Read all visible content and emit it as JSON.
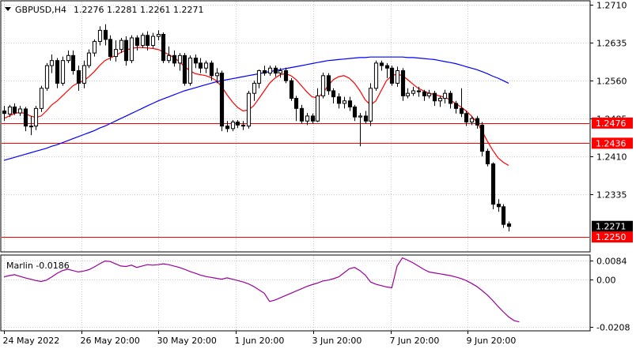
{
  "header": {
    "symbol_timeframe": "GBPUSD,H4",
    "ohlc": "1.2276 1.2281 1.2261 1.2271",
    "menu_arrow": "triangle-down-icon"
  },
  "colors": {
    "background": "#ffffff",
    "grid": "#c8c8c8",
    "candle": "#000000",
    "ma_fast": "#ff0000",
    "ma_slow": "#0000ff",
    "hline": "#ff0000",
    "marlin": "#990099",
    "price_tag_red": "#ff0000",
    "price_tag_black": "#000000"
  },
  "chart_data": [
    {
      "type": "candlestick",
      "title": "GBPUSD,H4",
      "x_tick_labels": [
        "24 May 2022",
        "26 May 20:00",
        "30 May 20:00",
        "1 Jun 20:00",
        "3 Jun 20:00",
        "7 Jun 20:00",
        "9 Jun 20:00"
      ],
      "y_tick_labels": [
        "1.2710",
        "1.2635",
        "1.2560",
        "1.2485",
        "1.2410",
        "1.2335"
      ],
      "ylim": [
        1.2222,
        1.2717
      ],
      "grid": true,
      "price_tags": [
        {
          "value": 1.2476,
          "label": "1.2476",
          "style": "red"
        },
        {
          "value": 1.2436,
          "label": "1.2436",
          "style": "red"
        },
        {
          "value": 1.2271,
          "label": "1.2271",
          "style": "black"
        },
        {
          "value": 1.225,
          "label": "1.2250",
          "style": "red"
        }
      ],
      "hlines": [
        1.2476,
        1.2436,
        1.225
      ],
      "candles": [
        [
          1.25,
          1.2495,
          1.251,
          1.248
        ],
        [
          1.2494,
          1.2508,
          1.2512,
          1.2488
        ],
        [
          1.2508,
          1.2496,
          1.2515,
          1.2492
        ],
        [
          1.2496,
          1.2504,
          1.251,
          1.249
        ],
        [
          1.2504,
          1.247,
          1.2508,
          1.246
        ],
        [
          1.247,
          1.247,
          1.249,
          1.2452
        ],
        [
          1.247,
          1.2505,
          1.251,
          1.2462
        ],
        [
          1.2505,
          1.2545,
          1.255,
          1.2498
        ],
        [
          1.2545,
          1.259,
          1.2595,
          1.254
        ],
        [
          1.259,
          1.26,
          1.2612,
          1.2575
        ],
        [
          1.26,
          1.2555,
          1.2605,
          1.2545
        ],
        [
          1.2555,
          1.26,
          1.2608,
          1.255
        ],
        [
          1.26,
          1.261,
          1.262,
          1.2595
        ],
        [
          1.261,
          1.258,
          1.262,
          1.2572
        ],
        [
          1.258,
          1.2555,
          1.259,
          1.254
        ],
        [
          1.2555,
          1.259,
          1.26,
          1.2545
        ],
        [
          1.259,
          1.2615,
          1.2622,
          1.2585
        ],
        [
          1.2615,
          1.2638,
          1.2642,
          1.2608
        ],
        [
          1.2638,
          1.266,
          1.2668,
          1.263
        ],
        [
          1.266,
          1.2642,
          1.2672,
          1.263
        ],
        [
          1.2642,
          1.2608,
          1.265,
          1.26
        ],
        [
          1.2608,
          1.2622,
          1.264,
          1.2598
        ],
        [
          1.2622,
          1.264,
          1.2645,
          1.2615
        ],
        [
          1.264,
          1.26,
          1.2648,
          1.259
        ],
        [
          1.26,
          1.2645,
          1.265,
          1.2595
        ],
        [
          1.2645,
          1.263,
          1.265,
          1.262
        ],
        [
          1.263,
          1.265,
          1.2655,
          1.2625
        ],
        [
          1.265,
          1.263,
          1.2658,
          1.262
        ],
        [
          1.263,
          1.2648,
          1.2655,
          1.2625
        ],
        [
          1.2648,
          1.2652,
          1.266,
          1.264
        ],
        [
          1.2652,
          1.26,
          1.2656,
          1.2595
        ],
        [
          1.26,
          1.261,
          1.2628,
          1.2595
        ],
        [
          1.261,
          1.2595,
          1.262,
          1.2588
        ],
        [
          1.2595,
          1.261,
          1.2615,
          1.258
        ],
        [
          1.261,
          1.2555,
          1.2615,
          1.255
        ],
        [
          1.2555,
          1.2605,
          1.261,
          1.255
        ],
        [
          1.2605,
          1.2595,
          1.2612,
          1.2585
        ],
        [
          1.2595,
          1.2585,
          1.2605,
          1.2575
        ],
        [
          1.2585,
          1.2595,
          1.26,
          1.2575
        ],
        [
          1.2595,
          1.257,
          1.26,
          1.256
        ],
        [
          1.257,
          1.2575,
          1.2585,
          1.2555
        ],
        [
          1.2575,
          1.247,
          1.258,
          1.246
        ],
        [
          1.247,
          1.2465,
          1.248,
          1.2458
        ],
        [
          1.2465,
          1.2478,
          1.2482,
          1.246
        ],
        [
          1.2478,
          1.2472,
          1.2482,
          1.2466
        ],
        [
          1.2472,
          1.247,
          1.248,
          1.2462
        ],
        [
          1.247,
          1.2535,
          1.254,
          1.2465
        ],
        [
          1.2535,
          1.2555,
          1.256,
          1.252
        ],
        [
          1.2555,
          1.258,
          1.2582,
          1.2545
        ],
        [
          1.258,
          1.2575,
          1.259,
          1.257
        ],
        [
          1.2575,
          1.2585,
          1.259,
          1.257
        ],
        [
          1.2585,
          1.2575,
          1.259,
          1.2568
        ],
        [
          1.2575,
          1.258,
          1.2585,
          1.2566
        ],
        [
          1.258,
          1.256,
          1.2586,
          1.2555
        ],
        [
          1.256,
          1.2525,
          1.2565,
          1.252
        ],
        [
          1.2525,
          1.2505,
          1.253,
          1.248
        ],
        [
          1.2505,
          1.248,
          1.2512,
          1.2475
        ],
        [
          1.248,
          1.249,
          1.2496,
          1.2472
        ],
        [
          1.249,
          1.248,
          1.2495,
          1.2475
        ],
        [
          1.248,
          1.253,
          1.2545,
          1.2478
        ],
        [
          1.253,
          1.257,
          1.2576,
          1.2525
        ],
        [
          1.257,
          1.254,
          1.2575,
          1.2532
        ],
        [
          1.254,
          1.2528,
          1.2545,
          1.2515
        ],
        [
          1.2528,
          1.2515,
          1.2535,
          1.2505
        ],
        [
          1.2515,
          1.252,
          1.2528,
          1.2505
        ],
        [
          1.252,
          1.2508,
          1.2528,
          1.25
        ],
        [
          1.2508,
          1.2488,
          1.2512,
          1.248
        ],
        [
          1.2488,
          1.249,
          1.2496,
          1.243
        ],
        [
          1.249,
          1.248,
          1.25,
          1.2475
        ],
        [
          1.248,
          1.2545,
          1.2555,
          1.247
        ],
        [
          1.2545,
          1.2595,
          1.26,
          1.254
        ],
        [
          1.2595,
          1.259,
          1.26,
          1.258
        ],
        [
          1.259,
          1.2585,
          1.2595,
          1.2565
        ],
        [
          1.2585,
          1.2555,
          1.259,
          1.255
        ],
        [
          1.2555,
          1.258,
          1.2588,
          1.2548
        ],
        [
          1.258,
          1.253,
          1.2585,
          1.252
        ],
        [
          1.253,
          1.2535,
          1.2545,
          1.2525
        ],
        [
          1.2535,
          1.254,
          1.2548,
          1.253
        ],
        [
          1.254,
          1.2538,
          1.2548,
          1.2528
        ],
        [
          1.2538,
          1.253,
          1.2542,
          1.252
        ],
        [
          1.253,
          1.2535,
          1.2542,
          1.2525
        ],
        [
          1.2535,
          1.252,
          1.254,
          1.251
        ],
        [
          1.252,
          1.2525,
          1.253,
          1.2508
        ],
        [
          1.2525,
          1.2535,
          1.2542,
          1.2515
        ],
        [
          1.2535,
          1.2515,
          1.254,
          1.2505
        ],
        [
          1.2515,
          1.2505,
          1.252,
          1.2495
        ],
        [
          1.2505,
          1.2495,
          1.2545,
          1.2488
        ],
        [
          1.2495,
          1.2478,
          1.25,
          1.247
        ],
        [
          1.2478,
          1.2485,
          1.249,
          1.2472
        ],
        [
          1.2485,
          1.2472,
          1.249,
          1.2465
        ],
        [
          1.2472,
          1.242,
          1.2478,
          1.241
        ],
        [
          1.242,
          1.2395,
          1.2425,
          1.239
        ],
        [
          1.2395,
          1.2315,
          1.2398,
          1.2305
        ],
        [
          1.2315,
          1.231,
          1.2325,
          1.23
        ],
        [
          1.231,
          1.2275,
          1.2315,
          1.2268
        ],
        [
          1.2276,
          1.2271,
          1.2281,
          1.2261
        ]
      ],
      "candle_fields": [
        "open",
        "close",
        "high",
        "low"
      ],
      "series": [
        {
          "values": [
            1.2485,
            1.249,
            1.2495,
            1.2497,
            1.2495,
            1.249,
            1.2487,
            1.249,
            1.25,
            1.2512,
            1.252,
            1.253,
            1.254,
            1.255,
            1.2556,
            1.256,
            1.2568,
            1.2578,
            1.259,
            1.26,
            1.2605,
            1.261,
            1.2616,
            1.2621,
            1.2624,
            1.2626,
            1.2626,
            1.2625,
            1.2624,
            1.2622,
            1.2617,
            1.2612,
            1.2606,
            1.2598,
            1.2588,
            1.258,
            1.2574,
            1.2572,
            1.257,
            1.2566,
            1.256,
            1.2548,
            1.2532,
            1.2518,
            1.2507,
            1.25,
            1.2502,
            1.251,
            1.2525,
            1.254,
            1.2555,
            1.2565,
            1.2572,
            1.2574,
            1.257,
            1.2562,
            1.255,
            1.2538,
            1.2528,
            1.2526,
            1.2535,
            1.255,
            1.2562,
            1.2568,
            1.257,
            1.2565,
            1.2555,
            1.254,
            1.2522,
            1.2512,
            1.252,
            1.254,
            1.256,
            1.257,
            1.2573,
            1.257,
            1.2562,
            1.2553,
            1.2545,
            1.254,
            1.2535,
            1.2533,
            1.253,
            1.2527,
            1.2522,
            1.2515,
            1.2508,
            1.25,
            1.249,
            1.2478,
            1.246,
            1.244,
            1.2422,
            1.2407,
            1.2398,
            1.2392
          ]
        },
        {
          "values": [
            1.2402,
            1.2405,
            1.2408,
            1.2411,
            1.2414,
            1.2417,
            1.242,
            1.2423,
            1.2426,
            1.243,
            1.2433,
            1.2437,
            1.2441,
            1.2445,
            1.2449,
            1.2453,
            1.2457,
            1.2461,
            1.2466,
            1.247,
            1.2475,
            1.248,
            1.2485,
            1.249,
            1.2495,
            1.25,
            1.2505,
            1.251,
            1.2515,
            1.252,
            1.2524,
            1.2528,
            1.2532,
            1.2536,
            1.254,
            1.2543,
            1.2546,
            1.2549,
            1.2552,
            1.2555,
            1.2558,
            1.256,
            1.2562,
            1.2564,
            1.2566,
            1.2568,
            1.257,
            1.2572,
            1.2574,
            1.2576,
            1.2578,
            1.258,
            1.2582,
            1.2584,
            1.2586,
            1.2588,
            1.259,
            1.2592,
            1.2594,
            1.2596,
            1.2598,
            1.26,
            1.2601,
            1.2602,
            1.2603,
            1.2604,
            1.2605,
            1.2606,
            1.2606,
            1.2607,
            1.2607,
            1.2607,
            1.2607,
            1.2607,
            1.2607,
            1.2607,
            1.2606,
            1.2606,
            1.2605,
            1.2604,
            1.2603,
            1.2602,
            1.26,
            1.2598,
            1.2596,
            1.2594,
            1.2591,
            1.2588,
            1.2585,
            1.2582,
            1.2578,
            1.2574,
            1.2569,
            1.2565,
            1.256,
            1.2555
          ]
        }
      ]
    },
    {
      "type": "line",
      "title": "Marlin -0.0186",
      "y_tick_labels": [
        "0.0084",
        "0.00",
        "-0.0208"
      ],
      "ylim": [
        -0.0222,
        0.0105
      ],
      "grid": true,
      "series": [
        {
          "values": [
            0.0012,
            0.0018,
            0.0022,
            0.0015,
            0.0008,
            0.0002,
            -0.0004,
            -0.0008,
            -0.0002,
            0.0012,
            0.0028,
            0.004,
            0.0046,
            0.004,
            0.0034,
            0.0038,
            0.0044,
            0.0056,
            0.007,
            0.0082,
            0.008,
            0.007,
            0.006,
            0.0058,
            0.0064,
            0.0054,
            0.006,
            0.0066,
            0.0064,
            0.0066,
            0.007,
            0.0066,
            0.006,
            0.0054,
            0.0046,
            0.0036,
            0.0028,
            0.002,
            0.0014,
            0.001,
            0.0006,
            0.0002,
            0.0008,
            0.0002,
            -0.0004,
            -0.001,
            -0.0018,
            -0.003,
            -0.0045,
            -0.006,
            -0.0096,
            -0.009,
            -0.008,
            -0.007,
            -0.006,
            -0.005,
            -0.004,
            -0.003,
            -0.0022,
            -0.0015,
            -0.0006,
            -0.0002,
            0.0004,
            0.0012,
            0.003,
            0.0048,
            0.0054,
            0.004,
            0.002,
            -0.001,
            -0.002,
            -0.0026,
            -0.0032,
            -0.0036,
            0.006,
            0.0096,
            0.0086,
            0.0074,
            0.006,
            0.0046,
            0.0034,
            0.003,
            0.0026,
            0.0022,
            0.0018,
            0.0012,
            0.0005,
            -0.0004,
            -0.0016,
            -0.003,
            -0.0048,
            -0.0068,
            -0.0092,
            -0.0118,
            -0.0142,
            -0.0164,
            -0.018,
            -0.0186
          ]
        }
      ]
    }
  ],
  "time_axis_labels": [
    "24 May 2022",
    "26 May 20:00",
    "30 May 20:00",
    "1 Jun 20:00",
    "3 Jun 20:00",
    "7 Jun 20:00",
    "9 Jun 20:00"
  ]
}
